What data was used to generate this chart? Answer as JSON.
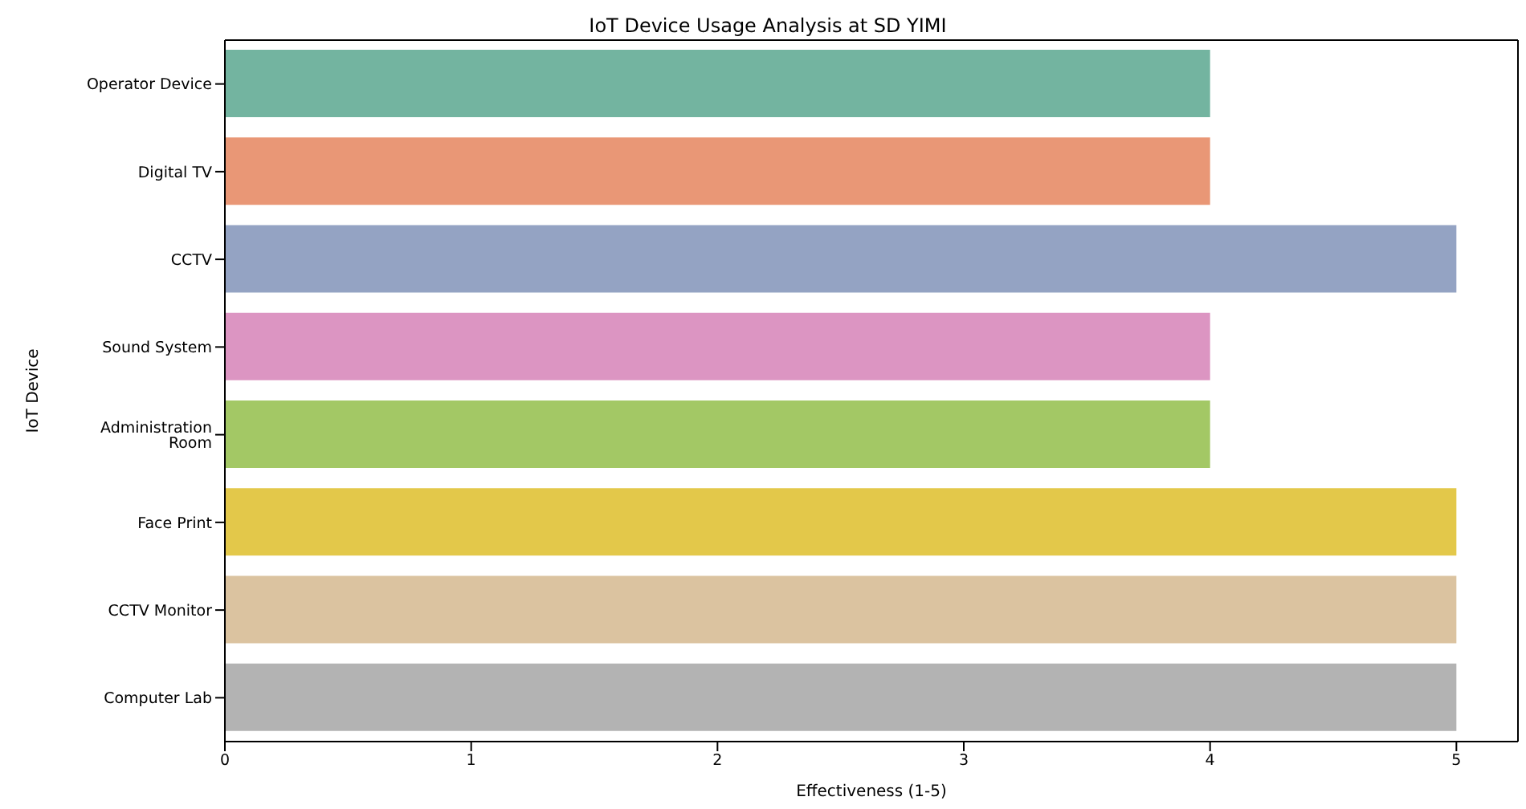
{
  "chart_data": {
    "type": "bar",
    "orientation": "horizontal",
    "title": "IoT Device Usage Analysis at SD YIMI",
    "xlabel": "Effectiveness (1-5)",
    "ylabel": "IoT Device",
    "categories": [
      "Operator Device",
      "Digital TV",
      "CCTV",
      "Sound System",
      "Administration Room",
      "Face Print",
      "CCTV Monitor",
      "Computer Lab"
    ],
    "values": [
      4,
      4,
      5,
      4,
      4,
      5,
      5,
      5
    ],
    "colors": [
      "#73b4a0",
      "#e99776",
      "#94a3c3",
      "#dc95c2",
      "#a3c865",
      "#e3c84a",
      "#dbc3a0",
      "#b3b3b3"
    ],
    "xlim": [
      0,
      5.25
    ],
    "xticks": [
      0,
      1,
      2,
      3,
      4,
      5
    ],
    "grid": false,
    "legend": false
  }
}
